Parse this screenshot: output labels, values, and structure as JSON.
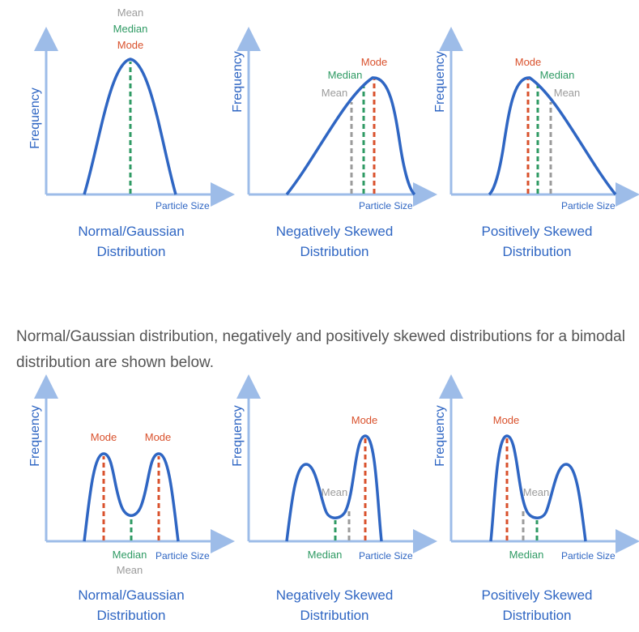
{
  "colors": {
    "curve": "#2f66c3",
    "axis": "#9dbce8",
    "mean": "#9b9b9b",
    "median": "#2e9a63",
    "mode": "#d9512c",
    "caption": "#2f66c3",
    "text": "#555555"
  },
  "labels": {
    "frequency": "Frequency",
    "particle_size": "Particle Size",
    "mean": "Mean",
    "median": "Median",
    "mode": "Mode"
  },
  "captions": {
    "normal_1": "Normal/Gaussian",
    "normal_2": "Distribution",
    "negative_1": "Negatively Skewed",
    "negative_2": "Distribution",
    "positive_1": "Positively Skewed",
    "positive_2": "Distribution"
  },
  "paragraph": "Normal/Gaussian distribution, negatively and positively skewed distributions for a bimodal distribution are shown below."
}
